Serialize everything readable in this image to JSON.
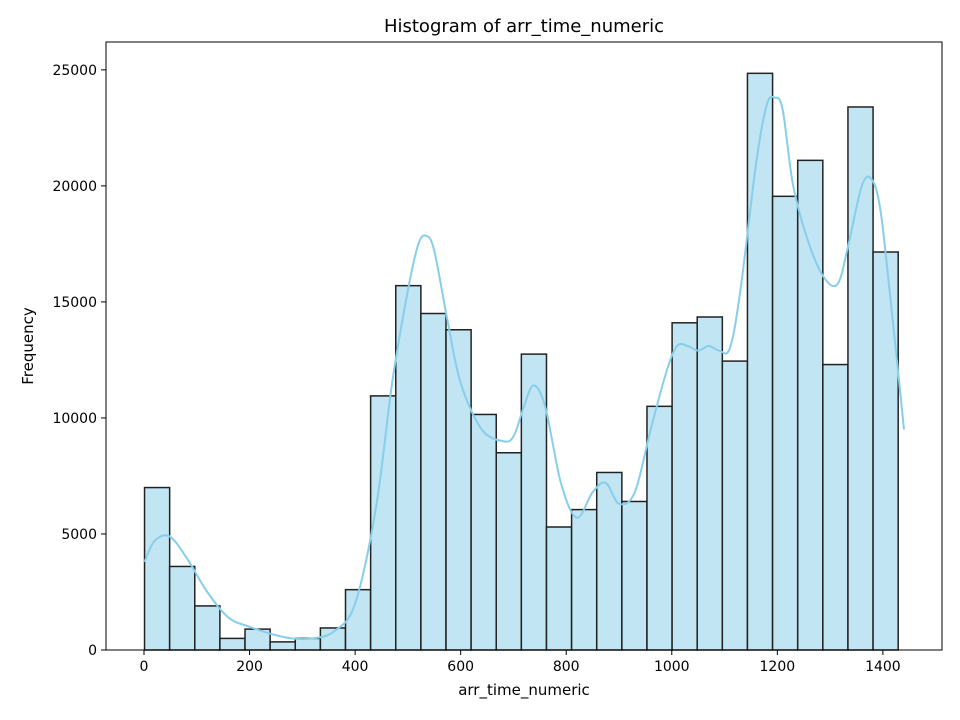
{
  "chart_data": {
    "type": "bar",
    "title": "Histogram of arr_time_numeric",
    "xlabel": "arr_time_numeric",
    "ylabel": "Frequency",
    "xlim": [
      -72,
      1512
    ],
    "ylim": [
      0,
      26200
    ],
    "xticks": [
      0,
      200,
      400,
      600,
      800,
      1000,
      1200,
      1400
    ],
    "yticks": [
      0,
      5000,
      10000,
      15000,
      20000,
      25000
    ],
    "bin_edges": [
      1,
      48.6,
      96.2,
      143.8,
      191.4,
      239,
      286.6,
      334.2,
      381.8,
      429.4,
      477,
      524.6,
      572.2,
      619.8,
      667.4,
      715,
      762.6,
      810.2,
      857.8,
      905.4,
      953,
      1000.6,
      1048.2,
      1095.8,
      1143.4,
      1191,
      1238.6,
      1286.2,
      1333.8,
      1381.4,
      1429
    ],
    "values": [
      7000,
      3600,
      1900,
      500,
      900,
      350,
      500,
      950,
      2600,
      10950,
      15700,
      14500,
      13800,
      10150,
      8500,
      12750,
      5300,
      6050,
      7650,
      6400,
      10500,
      14100,
      14350,
      12450,
      24850,
      19550,
      21100,
      12300,
      23400,
      17150
    ],
    "kde": {
      "x": [
        1,
        20,
        48,
        80,
        120,
        160,
        200,
        240,
        280,
        320,
        360,
        400,
        440,
        470,
        500,
        520,
        535,
        550,
        575,
        600,
        640,
        680,
        700,
        720,
        738,
        760,
        790,
        820,
        850,
        875,
        900,
        930,
        960,
        990,
        1010,
        1030,
        1050,
        1070,
        1090,
        1110,
        1130,
        1160,
        1180,
        1195,
        1210,
        1230,
        1260,
        1290,
        1315,
        1335,
        1360,
        1378,
        1395,
        1415,
        1440
      ],
      "y": [
        3800,
        4700,
        4900,
        4000,
        2500,
        1400,
        1000,
        700,
        500,
        500,
        800,
        2000,
        6200,
        11500,
        15500,
        17500,
        17850,
        17200,
        14200,
        11500,
        9500,
        9000,
        9200,
        10500,
        11400,
        10500,
        7200,
        5700,
        6800,
        7200,
        6300,
        6800,
        9500,
        12000,
        13100,
        13100,
        12900,
        13100,
        12900,
        13000,
        15500,
        21000,
        23500,
        23800,
        23300,
        20000,
        17500,
        16000,
        15800,
        17500,
        20000,
        20300,
        19000,
        15000,
        9500
      ]
    },
    "bar_fill": "#c2e5f4",
    "bar_stroke": "#222222",
    "kde_color": "#87ceeb",
    "grid": false,
    "legend": "none"
  }
}
